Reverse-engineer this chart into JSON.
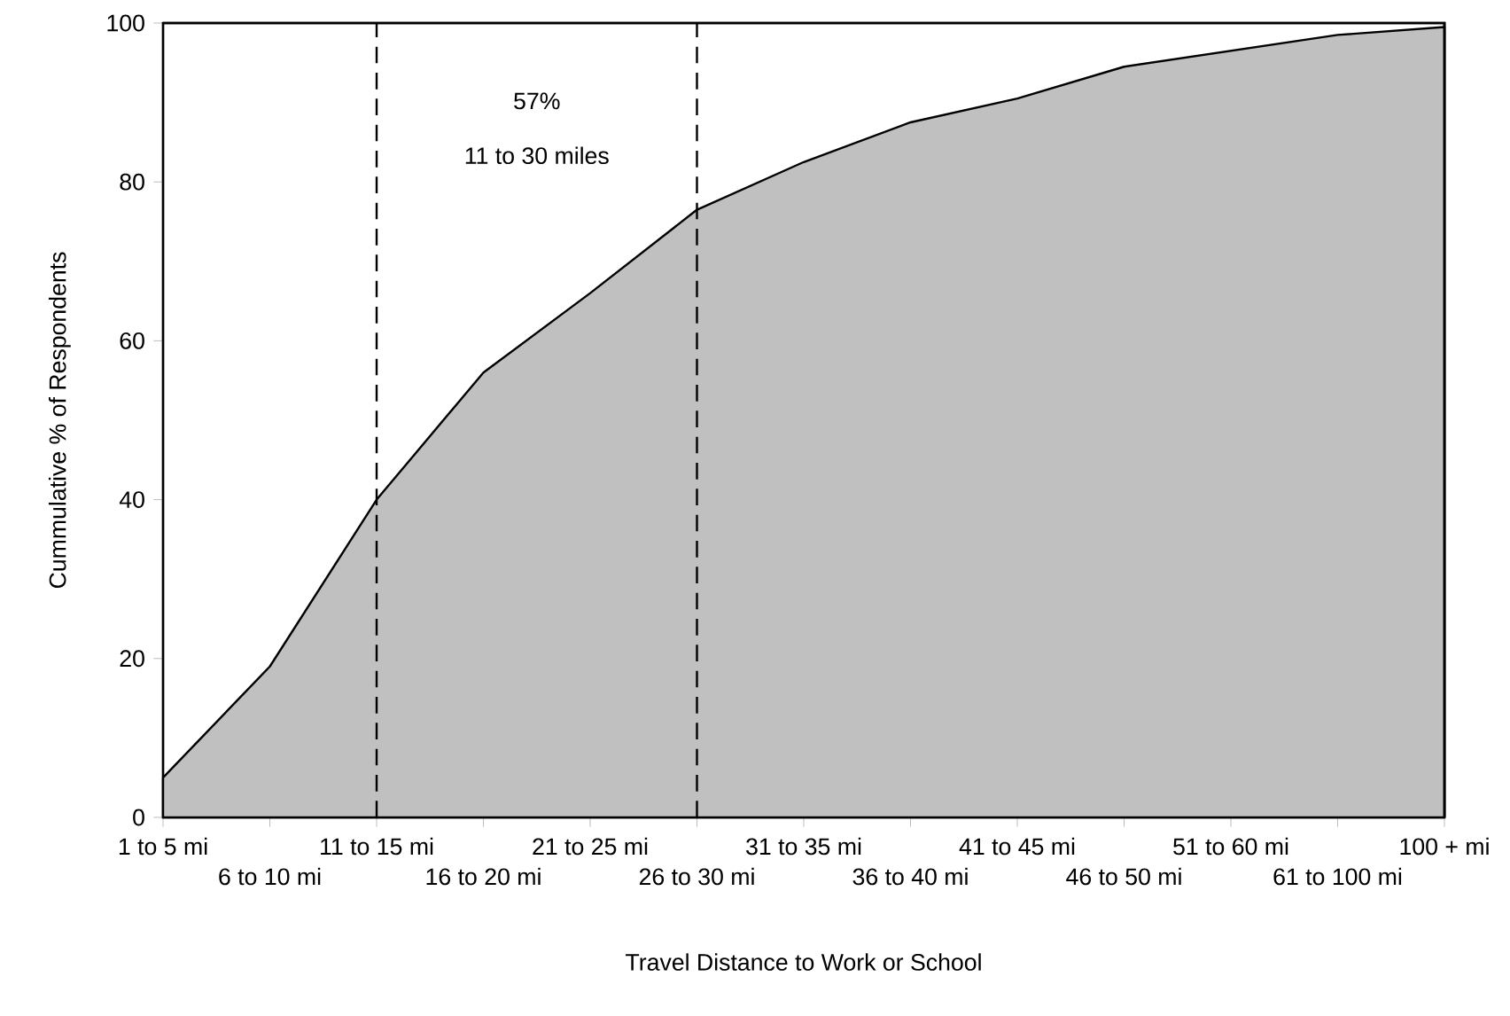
{
  "chart_data": {
    "type": "area",
    "xlabel": "Travel Distance to Work or School",
    "ylabel": "Cummulative % of Respondents",
    "categories": [
      "1 to 5 mi",
      "6 to 10 mi",
      "11 to 15 mi",
      "16 to 20 mi",
      "21 to 25 mi",
      "26 to 30 mi",
      "31 to 35 mi",
      "36 to 40 mi",
      "41 to 45 mi",
      "46 to 50 mi",
      "51 to 60 mi",
      "61 to 100 mi",
      "100 + mi"
    ],
    "values": [
      5,
      19,
      40,
      56,
      66,
      76.5,
      82.5,
      87.5,
      90.5,
      94.5,
      96.5,
      98.5,
      99.5
    ],
    "color": "#c0c0c0",
    "ylim": [
      0,
      100
    ],
    "yticks": [
      0,
      20,
      40,
      60,
      80,
      100
    ],
    "ref_lines": [
      {
        "axis": "x",
        "value": "11 to 15 mi",
        "line_style": "dashed",
        "color": "#000000"
      },
      {
        "axis": "x",
        "value": "26 to 30 mi",
        "line_style": "dashed",
        "color": "#000000"
      }
    ],
    "annotations": [
      "57%",
      "11 to 30 miles"
    ]
  }
}
